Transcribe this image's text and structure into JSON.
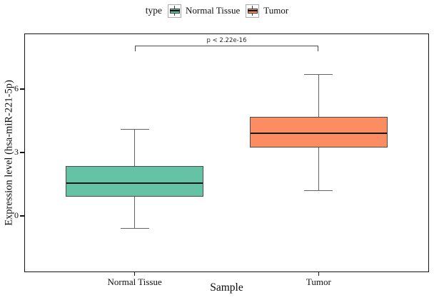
{
  "legend": {
    "title": "type",
    "items": [
      {
        "label": "Normal Tissue",
        "color": "#66C2A5"
      },
      {
        "label": "Tumor",
        "color": "#FC8D62"
      }
    ]
  },
  "chart_data": {
    "type": "boxplot",
    "title": "",
    "xlabel": "Sample",
    "ylabel": "Expression level (hsa-miR-221-5p)",
    "categories": [
      "Normal Tissue",
      "Tumor"
    ],
    "yticks": [
      0,
      3,
      6
    ],
    "ylim": [
      -2.67,
      8.64
    ],
    "grid": false,
    "legend_position": "top-center",
    "series": [
      {
        "name": "Normal Tissue",
        "color": "#66C2A5",
        "whisker_low": -0.6,
        "q1": 0.9,
        "median": 1.55,
        "q3": 2.35,
        "whisker_high": 4.1
      },
      {
        "name": "Tumor",
        "color": "#FC8D62",
        "whisker_low": 1.2,
        "q1": 3.25,
        "median": 3.9,
        "q3": 4.7,
        "whisker_high": 6.7
      }
    ],
    "annotation": {
      "label": "p < 2.22e-16",
      "y": 8.07,
      "compares": [
        "Normal Tissue",
        "Tumor"
      ]
    }
  }
}
